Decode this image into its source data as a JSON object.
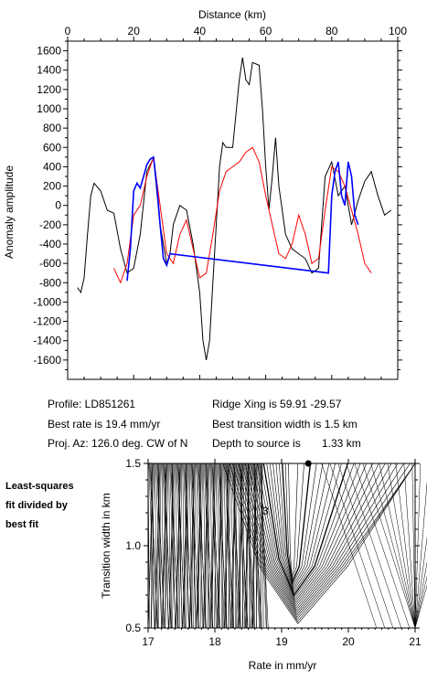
{
  "chart_data": [
    {
      "type": "line",
      "title": "",
      "xlabel": "Distance (km)",
      "ylabel": "Anomaly amplitude",
      "xlim": [
        0,
        100
      ],
      "ylim": [
        -1800,
        1700
      ],
      "xticks": [
        "0",
        "20",
        "40",
        "60",
        "80",
        "100"
      ],
      "yticks": [
        "1600",
        "1400",
        "1200",
        "1000",
        "800",
        "600",
        "400",
        "200",
        "0",
        "-200",
        "-400",
        "-600",
        "-800",
        "-1000",
        "-1200",
        "-1400",
        "-1600"
      ],
      "grid": false,
      "colors": {
        "observed": "#000000",
        "model": "#ff0000",
        "fitted": "#0000ff"
      },
      "series": [
        {
          "key": "observed",
          "x": [
            3,
            4,
            5,
            6,
            7,
            8,
            10,
            12,
            14,
            16,
            18,
            20,
            22,
            24,
            26,
            28,
            30,
            31,
            32,
            34,
            36,
            38,
            40,
            41,
            42,
            43,
            44,
            45,
            46,
            47,
            48,
            50,
            52,
            53,
            54,
            55,
            56,
            58,
            59,
            60,
            61,
            62,
            63,
            64,
            66,
            68,
            70,
            72,
            74,
            76,
            78,
            80,
            82,
            84,
            86,
            88,
            90,
            92,
            94,
            96,
            98
          ],
          "y": [
            -850,
            -900,
            -750,
            -300,
            100,
            230,
            150,
            -50,
            -80,
            -450,
            -700,
            -650,
            -300,
            350,
            490,
            -200,
            -600,
            -500,
            -200,
            0,
            -50,
            -400,
            -900,
            -1400,
            -1600,
            -1400,
            -800,
            -200,
            400,
            650,
            600,
            600,
            1300,
            1530,
            1300,
            1250,
            1480,
            1450,
            1000,
            400,
            -40,
            300,
            700,
            200,
            -300,
            -450,
            -500,
            -550,
            -700,
            -650,
            300,
            450,
            100,
            200,
            -200,
            50,
            250,
            350,
            100,
            -100,
            -50
          ]
        },
        {
          "key": "model",
          "x": [
            14,
            16,
            18,
            20,
            22,
            24,
            26,
            28,
            30,
            32,
            34,
            36,
            38,
            40,
            42,
            44,
            46,
            48,
            50,
            52,
            54,
            56,
            58,
            60,
            62,
            64,
            66,
            68,
            70,
            72,
            74,
            76,
            78,
            80,
            82,
            84,
            86,
            88,
            90,
            92
          ],
          "y": [
            -650,
            -800,
            -600,
            -100,
            0,
            300,
            500,
            0,
            -500,
            -600,
            -300,
            -150,
            -450,
            -750,
            -700,
            -300,
            150,
            350,
            400,
            450,
            550,
            600,
            450,
            100,
            -200,
            -500,
            -550,
            -400,
            -100,
            -300,
            -600,
            -550,
            -50,
            400,
            350,
            200,
            -50,
            -300,
            -600,
            -700
          ]
        },
        {
          "key": "fitted",
          "x": [
            18,
            19,
            20,
            21,
            22,
            23,
            24,
            25,
            26,
            27,
            28,
            29,
            30,
            31,
            79,
            80,
            81,
            82,
            83,
            84,
            85,
            86,
            87,
            88
          ],
          "y": [
            -780,
            -450,
            150,
            230,
            180,
            300,
            420,
            480,
            500,
            200,
            -200,
            -550,
            -620,
            -500,
            -700,
            100,
            350,
            450,
            100,
            0,
            450,
            300,
            -100,
            -200
          ]
        }
      ]
    },
    {
      "type": "contour",
      "xlabel": "Rate in mm/yr",
      "ylabel": "Transition width in km",
      "xlim": [
        17,
        21
      ],
      "ylim": [
        0.5,
        1.5
      ],
      "xticks": [
        "17",
        "18",
        "19",
        "20",
        "21"
      ],
      "yticks": [
        "0.5",
        "1.0",
        "1.5"
      ],
      "best_fit": {
        "rate": 19.4,
        "width": 1.5
      },
      "contour_label": "3"
    }
  ],
  "info": {
    "profile": "Profile: LD851261",
    "best_rate": "Best rate is 19.4 mm/yr",
    "proj_az": "Proj. Az: 126.0 deg. CW of N",
    "ridge_xing": "Ridge Xing is 59.91 -29.57",
    "best_width": "Best transition width is 1.5 km",
    "depth": "Depth to source is",
    "depth_value": "1.33 km"
  },
  "side_note": {
    "line1": "Least-squares",
    "line2": "fit divided by",
    "line3": "best fit"
  }
}
